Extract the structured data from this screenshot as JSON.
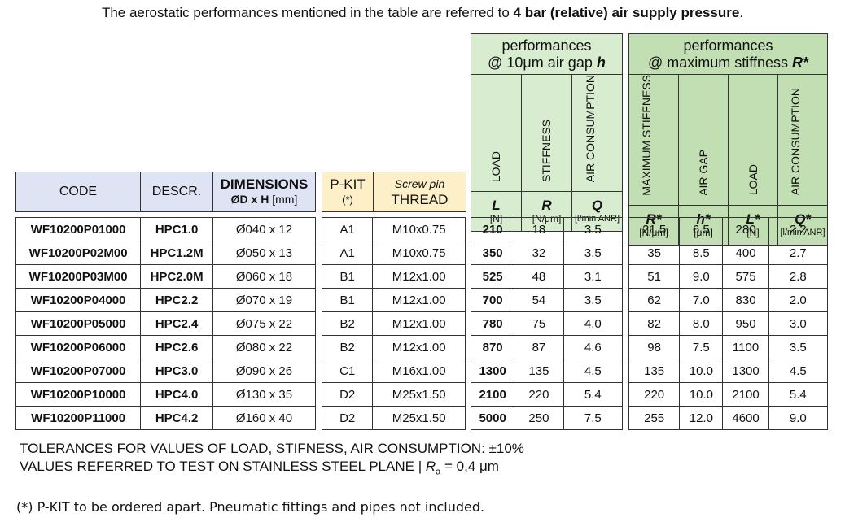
{
  "intro": {
    "prefix": "The aerostatic performances mentioned in the table are referred to ",
    "bold": "4 bar (relative) air supply pressure",
    "suffix": "."
  },
  "left_headers": {
    "code": "CODE",
    "descr": "DESCR.",
    "dimensions": "DIMENSIONS",
    "dimensions_sub": "ØD x H",
    "dimensions_unit": "[mm]",
    "pkit": "P-KIT",
    "pkit_sub": "(*)",
    "screw": "Screw pin",
    "thread": "THREAD"
  },
  "perf1": {
    "title_line1": "performances",
    "title_line2": "@ 10μm air gap ",
    "title_var": "h",
    "cols": [
      {
        "name": "LOAD",
        "sym": "L",
        "unit": "[N]"
      },
      {
        "name": "STIFFNESS",
        "sym": "R",
        "unit": "[N/μm]"
      },
      {
        "name": "AIR CONSUMPTION",
        "sym": "Q",
        "unit": "[l/min ANR]"
      }
    ]
  },
  "perf2": {
    "title_line1": "performances",
    "title_line2": "@ maximum stiffness ",
    "title_var": "R*",
    "cols": [
      {
        "name": "MAXIMUM STIFFNESS",
        "sym": "R*",
        "unit": "[N/μm]"
      },
      {
        "name": "AIR GAP",
        "sym": "h*",
        "unit": "[μm]"
      },
      {
        "name": "LOAD",
        "sym": "L*",
        "unit": "[N]"
      },
      {
        "name": "AIR CONSUMPTION",
        "sym": "Q*",
        "unit": "[l/min ANR]"
      }
    ]
  },
  "rows": [
    {
      "code": "WF10200P01000",
      "descr": "HPC1.0",
      "dim": "Ø040 x 12",
      "pkit": "A1",
      "thread": "M10x0.75",
      "L": "210",
      "R": "18",
      "Q": "3.5",
      "Rs": "21.5",
      "hs": "6.5",
      "Ls": "280",
      "Qs": "2.2"
    },
    {
      "code": "WF10200P02M00",
      "descr": "HPC1.2M",
      "dim": "Ø050 x 13",
      "pkit": "A1",
      "thread": "M10x0.75",
      "L": "350",
      "R": "32",
      "Q": "3.5",
      "Rs": "35",
      "hs": "8.5",
      "Ls": "400",
      "Qs": "2.7"
    },
    {
      "code": "WF10200P03M00",
      "descr": "HPC2.0M",
      "dim": "Ø060 x 18",
      "pkit": "B1",
      "thread": "M12x1.00",
      "L": "525",
      "R": "48",
      "Q": "3.1",
      "Rs": "51",
      "hs": "9.0",
      "Ls": "575",
      "Qs": "2.8"
    },
    {
      "code": "WF10200P04000",
      "descr": "HPC2.2",
      "dim": "Ø070 x 19",
      "pkit": "B1",
      "thread": "M12x1.00",
      "L": "700",
      "R": "54",
      "Q": "3.5",
      "Rs": "62",
      "hs": "7.0",
      "Ls": "830",
      "Qs": "2.0"
    },
    {
      "code": "WF10200P05000",
      "descr": "HPC2.4",
      "dim": "Ø075 x 22",
      "pkit": "B2",
      "thread": "M12x1.00",
      "L": "780",
      "R": "75",
      "Q": "4.0",
      "Rs": "82",
      "hs": "8.0",
      "Ls": "950",
      "Qs": "3.0"
    },
    {
      "code": "WF10200P06000",
      "descr": "HPC2.6",
      "dim": "Ø080 x 22",
      "pkit": "B2",
      "thread": "M12x1.00",
      "L": "870",
      "R": "87",
      "Q": "4.6",
      "Rs": "98",
      "hs": "7.5",
      "Ls": "1100",
      "Qs": "3.5"
    },
    {
      "code": "WF10200P07000",
      "descr": "HPC3.0",
      "dim": "Ø090 x 26",
      "pkit": "C1",
      "thread": "M16x1.00",
      "L": "1300",
      "R": "135",
      "Q": "4.5",
      "Rs": "135",
      "hs": "10.0",
      "Ls": "1300",
      "Qs": "4.5"
    },
    {
      "code": "WF10200P10000",
      "descr": "HPC4.0",
      "dim": "Ø130 x 35",
      "pkit": "D2",
      "thread": "M25x1.50",
      "L": "2100",
      "R": "220",
      "Q": "5.4",
      "Rs": "220",
      "hs": "10.0",
      "Ls": "2100",
      "Qs": "5.4"
    },
    {
      "code": "WF10200P11000",
      "descr": "HPC4.2",
      "dim": "Ø160 x 40",
      "pkit": "D2",
      "thread": "M25x1.50",
      "L": "5000",
      "R": "250",
      "Q": "7.5",
      "Rs": "255",
      "hs": "12.0",
      "Ls": "4600",
      "Qs": "9.0"
    }
  ],
  "notes": {
    "line1": "TOLERANCES FOR VALUES OF LOAD, STIFNESS, AIR CONSUMPTION: ±10%",
    "line2_prefix": "VALUES REFERRED TO TEST ON STAINLESS STEEL PLANE  |  ",
    "line2_var": "R",
    "line2_sub": "a",
    "line2_suffix": " = 0,4 μm"
  },
  "footnote": "(*) P-KIT to be ordered apart.  Pneumatic fittings and pipes not included.",
  "colors": {
    "header_blue": "#dfe4f4",
    "header_yellow": "#fdefc7",
    "header_green": "#d8ecd0",
    "header_green_dark": "#c2dfb3"
  }
}
